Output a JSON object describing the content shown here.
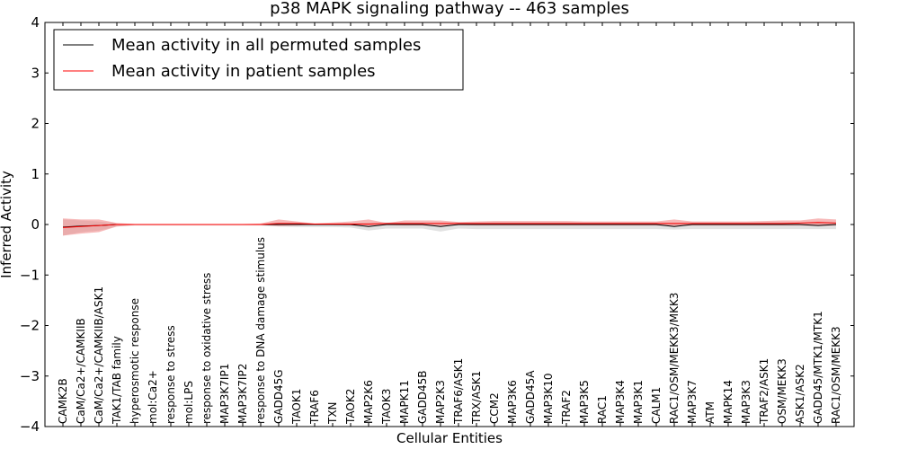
{
  "chart_data": {
    "type": "line",
    "title": "p38 MAPK signaling pathway -- 463 samples",
    "xlabel": "Cellular Entities",
    "ylabel": "Inferred Activity",
    "ylim": [
      -4,
      4
    ],
    "yticks": [
      "4",
      "3",
      "2",
      "1",
      "0",
      "−1",
      "−2",
      "−3",
      "−4"
    ],
    "ytick_values": [
      4,
      3,
      2,
      1,
      0,
      -1,
      -2,
      -3,
      -4
    ],
    "legend_position": "top-left",
    "categories": [
      "CAMK2B",
      "CaM/Ca2+/CAMKIIB",
      "CaM/Ca2+/CAMKIIB/ASK1",
      "TAK1/TAB family",
      "hyperosmotic response",
      "mol:Ca2+",
      "response to stress",
      "mol:LPS",
      "response to oxidative stress",
      "MAP3K7IP1",
      "MAP3K7IP2",
      "response to DNA damage stimulus",
      "GADD45G",
      "TAOK1",
      "TRAF6",
      "TXN",
      "TAOK2",
      "MAP2K6",
      "TAOK3",
      "MAPK11",
      "GADD45B",
      "MAP2K3",
      "TRAF6/ASK1",
      "TRX/ASK1",
      "CCM2",
      "MAP3K6",
      "GADD45A",
      "MAP3K10",
      "TRAF2",
      "MAP3K5",
      "RAC1",
      "MAP3K4",
      "MAP3K1",
      "CALM1",
      "RAC1/OSM/MEKK3/MKK3",
      "MAP3K7",
      "ATM",
      "MAPK14",
      "MAP3K3",
      "TRAF2/ASK1",
      "OSM/MEKK3",
      "ASK1/ASK2",
      "GADD45/MTK1/MTK1",
      "RAC1/OSM/MEKK3"
    ],
    "series": [
      {
        "name": "Mean activity in all permuted samples",
        "color": "#000000",
        "values": [
          -0.05,
          -0.03,
          -0.02,
          0.0,
          0.0,
          0.0,
          0.0,
          0.0,
          0.0,
          0.0,
          0.0,
          0.0,
          0.0,
          0.0,
          0.0,
          0.0,
          0.0,
          -0.04,
          0.0,
          0.0,
          0.0,
          -0.04,
          0.0,
          0.0,
          0.0,
          0.0,
          0.0,
          0.0,
          0.0,
          0.0,
          0.0,
          0.0,
          0.0,
          0.0,
          -0.04,
          0.0,
          0.0,
          0.0,
          0.0,
          0.0,
          0.0,
          0.0,
          -0.02,
          0.0
        ],
        "band_upper": [
          0.1,
          0.08,
          0.06,
          0.02,
          0.01,
          0.01,
          0.01,
          0.01,
          0.01,
          0.01,
          0.01,
          0.01,
          0.02,
          0.02,
          0.02,
          0.02,
          0.03,
          0.04,
          0.04,
          0.04,
          0.04,
          0.04,
          0.04,
          0.04,
          0.04,
          0.04,
          0.04,
          0.04,
          0.04,
          0.04,
          0.04,
          0.04,
          0.04,
          0.04,
          0.04,
          0.04,
          0.04,
          0.04,
          0.04,
          0.04,
          0.04,
          0.04,
          0.06,
          0.05
        ],
        "band_lower": [
          -0.22,
          -0.15,
          -0.12,
          -0.04,
          -0.02,
          -0.02,
          -0.02,
          -0.02,
          -0.02,
          -0.02,
          -0.02,
          -0.02,
          -0.04,
          -0.05,
          -0.05,
          -0.05,
          -0.06,
          -0.12,
          -0.08,
          -0.08,
          -0.08,
          -0.14,
          -0.08,
          -0.09,
          -0.09,
          -0.09,
          -0.09,
          -0.09,
          -0.09,
          -0.09,
          -0.09,
          -0.09,
          -0.09,
          -0.09,
          -0.1,
          -0.09,
          -0.09,
          -0.09,
          -0.09,
          -0.09,
          -0.09,
          -0.09,
          -0.09,
          -0.09
        ],
        "band_color": "#bfbfbf"
      },
      {
        "name": "Mean activity in patient samples",
        "color": "#ff0000",
        "values": [
          -0.06,
          -0.04,
          -0.02,
          0.0,
          0.0,
          0.0,
          0.0,
          0.0,
          0.0,
          0.0,
          0.0,
          0.0,
          0.02,
          0.02,
          0.01,
          0.01,
          0.01,
          0.01,
          0.02,
          0.02,
          0.02,
          0.02,
          0.02,
          0.02,
          0.02,
          0.02,
          0.02,
          0.02,
          0.02,
          0.02,
          0.02,
          0.02,
          0.02,
          0.02,
          0.02,
          0.02,
          0.02,
          0.02,
          0.02,
          0.02,
          0.02,
          0.03,
          0.04,
          0.03
        ],
        "band_upper": [
          0.12,
          0.1,
          0.1,
          0.03,
          0.01,
          0.01,
          0.01,
          0.01,
          0.01,
          0.01,
          0.01,
          0.02,
          0.1,
          0.06,
          0.02,
          0.04,
          0.06,
          0.1,
          0.03,
          0.08,
          0.08,
          0.08,
          0.05,
          0.06,
          0.07,
          0.07,
          0.07,
          0.07,
          0.07,
          0.06,
          0.06,
          0.06,
          0.06,
          0.06,
          0.1,
          0.06,
          0.06,
          0.06,
          0.06,
          0.07,
          0.08,
          0.08,
          0.12,
          0.1
        ],
        "band_lower": [
          -0.22,
          -0.18,
          -0.15,
          -0.04,
          -0.01,
          -0.01,
          -0.01,
          -0.01,
          -0.01,
          -0.01,
          -0.01,
          -0.01,
          -0.03,
          -0.02,
          0.0,
          -0.01,
          -0.02,
          -0.04,
          -0.01,
          -0.02,
          -0.02,
          -0.04,
          -0.01,
          -0.02,
          -0.02,
          -0.02,
          -0.02,
          -0.02,
          -0.02,
          -0.02,
          -0.02,
          -0.02,
          -0.02,
          -0.02,
          -0.03,
          -0.02,
          -0.02,
          -0.02,
          -0.02,
          -0.02,
          -0.02,
          -0.02,
          -0.03,
          -0.02
        ],
        "band_color": "#f08080"
      }
    ]
  }
}
